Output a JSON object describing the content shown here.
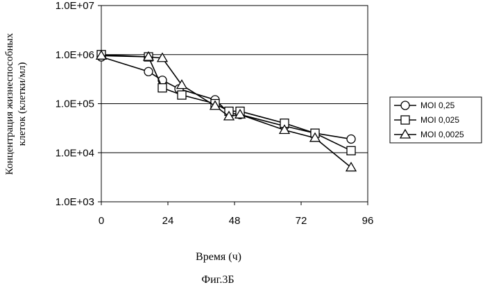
{
  "chart_data": {
    "type": "line",
    "yscale": "log",
    "title": "",
    "xlabel": "Время (ч)",
    "ylabel_line1": "Концентрация жизнеспособных",
    "ylabel_line2": "клеток (клетки/мл)",
    "caption": "Фиг.3Б",
    "xlim": [
      0,
      96
    ],
    "ylim": [
      1000,
      10000000
    ],
    "x_ticks": [
      0,
      24,
      48,
      72,
      96
    ],
    "x_tick_labels": [
      "0",
      "24",
      "48",
      "72",
      "96"
    ],
    "y_ticks": [
      1000,
      10000,
      100000,
      1000000,
      10000000
    ],
    "y_tick_labels": [
      "1.0E+03",
      "1.0E+04",
      "1.0E+05",
      "1.0E+06",
      "1.0E+07"
    ],
    "grid": "horizontal",
    "legend_position": "right",
    "series": [
      {
        "name": "MOI 0,25",
        "marker": "circle",
        "x": [
          0,
          17,
          22,
          28,
          41,
          46,
          50,
          66,
          77,
          90
        ],
        "y": [
          900000,
          450000,
          300000,
          200000,
          120000,
          65000,
          60000,
          35000,
          25000,
          19000
        ]
      },
      {
        "name": "MOI 0,025",
        "marker": "square",
        "x": [
          0,
          17,
          22,
          29,
          41,
          46,
          50,
          66,
          77,
          90
        ],
        "y": [
          1000000,
          900000,
          210000,
          150000,
          100000,
          70000,
          70000,
          40000,
          25000,
          11000
        ]
      },
      {
        "name": "MOI 0,0025",
        "marker": "triangle",
        "x": [
          0,
          17,
          22,
          29,
          41,
          46,
          50,
          66,
          77,
          90
        ],
        "y": [
          950000,
          900000,
          850000,
          240000,
          90000,
          55000,
          60000,
          29000,
          20000,
          5000
        ]
      }
    ]
  }
}
